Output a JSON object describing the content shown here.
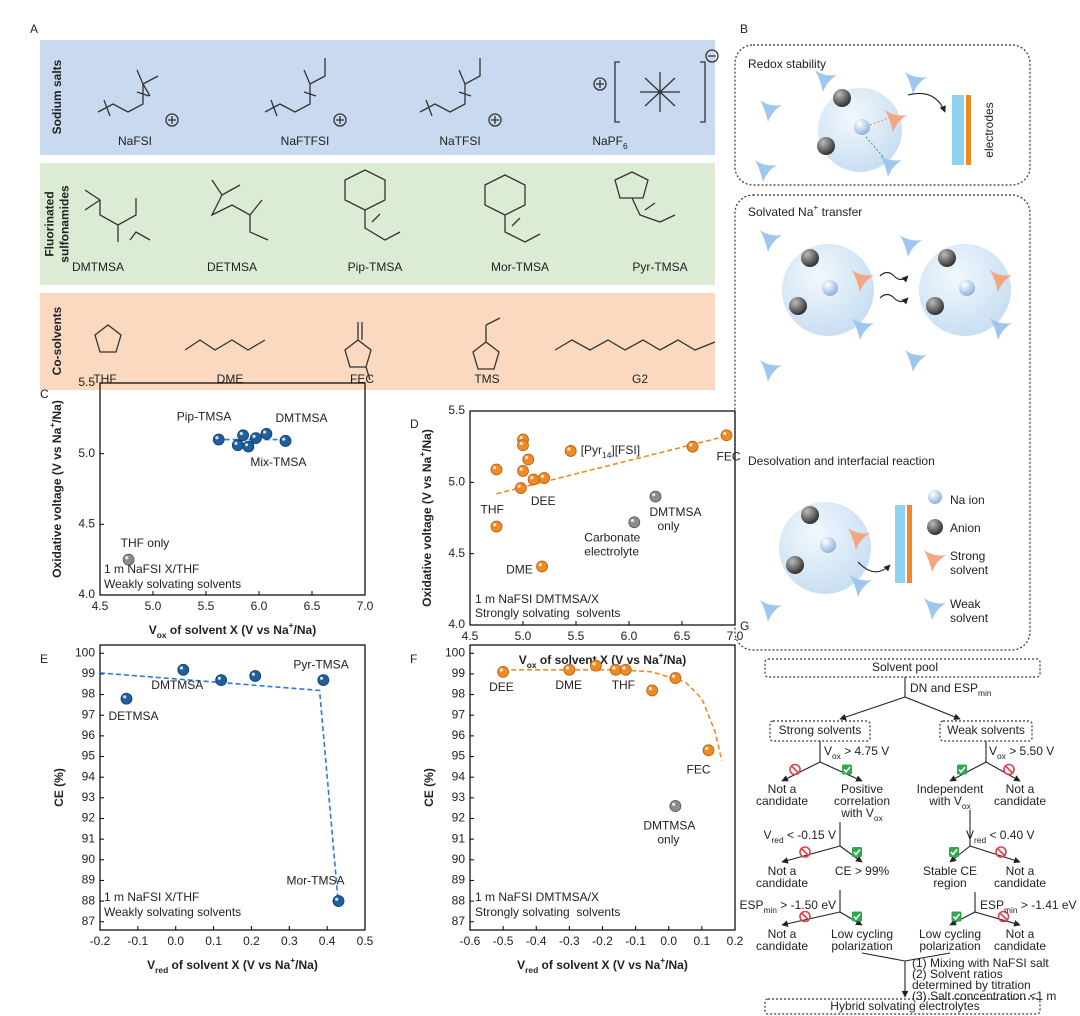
{
  "panel_a": {
    "label": "A",
    "groups": [
      {
        "title": [
          "Sodium salts"
        ],
        "items": [
          "NaFSI",
          "NaFTFSI",
          "NaTFSI",
          [
            "NaPF",
            {
              "sub": "6"
            }
          ]
        ]
      },
      {
        "title": [
          "Fluorinated",
          "sulfonamides"
        ],
        "items": [
          "DMTMSA",
          "DETMSA",
          "Pip-TMSA",
          "Mor-TMSA",
          "Pyr-TMSA"
        ]
      },
      {
        "title": [
          "Co-solvents"
        ],
        "items": [
          "THF",
          "DME",
          "FEC",
          "TMS",
          "G2"
        ]
      }
    ]
  },
  "panel_b": {
    "label": "B",
    "redox": "Redox stability",
    "electrodes": "electrodes",
    "transfer": [
      "Solvated Na",
      {
        "sup": "+"
      },
      " transfer"
    ],
    "desolvation": "Desolvation and interfacial reaction",
    "legend": [
      [
        "Na ion"
      ],
      [
        "Anion"
      ],
      [
        "Strong",
        "solvent"
      ],
      [
        "Weak",
        "solvent"
      ]
    ]
  },
  "panel_g": {
    "label": "G",
    "nodes": [
      [
        "Solvent pool"
      ],
      [
        [
          "DN and ESP",
          {
            "sub": "min"
          }
        ]
      ],
      [
        "Strong solvents"
      ],
      [
        "Weak solvents"
      ],
      [
        [
          "V",
          {
            "sub": "ox"
          },
          " > 4.75 V"
        ]
      ],
      [
        [
          "V",
          {
            "sub": "ox"
          },
          " > 5.50 V"
        ]
      ],
      [
        "Not a",
        "candidate"
      ],
      [
        "Positive",
        "correlation",
        [
          "with V",
          {
            "sub": "ox"
          }
        ]
      ],
      [
        "Independent",
        [
          "with V",
          {
            "sub": "ox"
          }
        ]
      ],
      [
        "Not a",
        "candidate"
      ],
      [
        [
          "V",
          {
            "sub": "red"
          },
          " < -0.15 V"
        ]
      ],
      [
        [
          "V",
          {
            "sub": "red"
          },
          " < 0.40 V"
        ]
      ],
      [
        "Not a",
        "candidate"
      ],
      [
        "CE > 99%"
      ],
      [
        "Stable CE",
        "region"
      ],
      [
        "Not a",
        "candidate"
      ],
      [
        [
          "ESP",
          {
            "sub": "min"
          },
          " > -1.50 eV"
        ]
      ],
      [
        [
          "ESP",
          {
            "sub": "min"
          },
          " > -1.41 eV"
        ]
      ],
      [
        "Not a",
        "candidate"
      ],
      [
        "Low cycling",
        "polarization"
      ],
      [
        "Low cycling",
        "polarization"
      ],
      [
        "Not a",
        "candidate"
      ],
      [
        "(1) Mixing with NaFSI salt",
        "(2) Solvent ratios",
        "determined by titration",
        "(3) Salt concentration <1 m"
      ],
      [
        "Hybrid solvating electrolytes"
      ]
    ]
  },
  "chart_data": [
    {
      "type": "scatter",
      "label": "C",
      "x_label": [
        "V",
        {
          "sub": "ox"
        },
        " of solvent X (V vs Na",
        {
          "sup": "+"
        },
        "/Na)"
      ],
      "y_label": [
        "Oxidative voltage (V vs Na",
        {
          "sup": "+"
        },
        "/Na)"
      ],
      "xlim": [
        4.5,
        7.0
      ],
      "xticks": [
        4.5,
        {
          "value": 5,
          "label": "5.0"
        },
        5.5,
        {
          "value": 6,
          "label": "6.0"
        },
        6.5,
        {
          "value": 7,
          "label": "7.0"
        }
      ],
      "ylim": [
        4.0,
        5.5
      ],
      "yticks": [
        {
          "value": 4,
          "label": "4.0"
        },
        4.5,
        {
          "value": 5,
          "label": "5.0"
        },
        5.5
      ],
      "series": [
        {
          "mode": "dashed-line",
          "color": "#2e7bd6",
          "x": [
            5.6,
            6.3
          ],
          "values": [
            5.1,
            5.1
          ]
        },
        {
          "mode": "markers",
          "color": "#1f5f9e",
          "x": [
            5.62,
            5.8,
            5.85,
            5.9,
            5.97,
            6.07,
            6.25
          ],
          "values": [
            5.1,
            5.06,
            5.13,
            5.05,
            5.11,
            5.14,
            5.09
          ]
        },
        {
          "mode": "markers",
          "color": "#8c8c8c",
          "x": [
            4.77
          ],
          "values": [
            4.25
          ]
        }
      ],
      "annotations": [
        {
          "text": "Pip-TMSA"
        },
        {
          "text": "DMTMSA"
        },
        {
          "text": "Mix-TMSA"
        },
        {
          "text": "THF only"
        },
        {
          "text": "1 m NaFSI X/THF",
          "color": "#2e7bd6"
        },
        {
          "text": "Weakly solvating solvents",
          "color": "#2e7bd6"
        }
      ]
    },
    {
      "type": "scatter",
      "label": "D",
      "x_label": [
        "V",
        {
          "sub": "ox"
        },
        " of solvent X (V vs Na",
        {
          "sup": "+"
        },
        "/Na)"
      ],
      "y_label": [
        "Oxidative voltage (V vs Na",
        {
          "sup": "+"
        },
        "/Na)"
      ],
      "xlim": [
        4.5,
        7.0
      ],
      "xticks": [
        4.5,
        {
          "value": 5,
          "label": "5.0"
        },
        5.5,
        {
          "value": 6,
          "label": "6.0"
        },
        6.5,
        {
          "value": 7,
          "label": "7.0"
        }
      ],
      "ylim": [
        4.0,
        5.5
      ],
      "yticks": [
        {
          "value": 4,
          "label": "4.0"
        },
        4.5,
        {
          "value": 5,
          "label": "5.0"
        },
        5.5
      ],
      "series": [
        {
          "mode": "dashed-line",
          "color": "#f08a24",
          "x": [
            4.75,
            6.95
          ],
          "values": [
            4.92,
            5.33
          ]
        },
        {
          "mode": "markers",
          "color": "#f08a24",
          "x": [
            4.75,
            5.0,
            5.0,
            5.05,
            5.0,
            5.1,
            5.2,
            4.98,
            5.45,
            6.6,
            6.92,
            4.75,
            5.18
          ],
          "values": [
            5.09,
            5.3,
            5.26,
            5.16,
            5.08,
            5.02,
            5.03,
            4.96,
            5.22,
            5.25,
            5.33,
            4.69,
            4.41
          ]
        },
        {
          "mode": "markers",
          "color": "#8c8c8c",
          "x": [
            6.05,
            6.25
          ],
          "values": [
            4.72,
            4.9
          ]
        }
      ],
      "annotations": [
        {
          "text": [
            "[Pyr",
            {
              "sub": "14"
            },
            "][FSI]"
          ]
        },
        {
          "text": "FEC"
        },
        {
          "text": "THF"
        },
        {
          "text": "DEE"
        },
        {
          "text": "DME"
        },
        {
          "text": "Carbonate"
        },
        {
          "text": "electrolyte"
        },
        {
          "text": "DMTMSA"
        },
        {
          "text": "only"
        },
        {
          "text": "1 m NaFSI DMTMSA/X",
          "color": "#f08a24"
        },
        {
          "text": "Strongly solvating  solvents",
          "color": "#f08a24"
        }
      ]
    },
    {
      "type": "scatter",
      "label": "E",
      "x_label": [
        "V",
        {
          "sub": "red"
        },
        " of solvent X (V vs Na",
        {
          "sup": "+"
        },
        "/Na)"
      ],
      "y_label": "CE (%)",
      "xlim": [
        -0.2,
        0.5
      ],
      "xticks": [
        -0.2,
        -0.1,
        {
          "value": 0,
          "label": "0.0"
        },
        0.1,
        0.2,
        0.3,
        0.4,
        0.5
      ],
      "ylim": [
        86.6,
        100.4
      ],
      "yticks": [
        87,
        88,
        89,
        90,
        91,
        92,
        93,
        94,
        95,
        96,
        97,
        98,
        99,
        100
      ],
      "series": [
        {
          "mode": "dashed-line",
          "color": "#2e7bd6",
          "x": [
            -0.2,
            0.38,
            0.43
          ],
          "values": [
            99.05,
            98.2,
            87.8
          ]
        },
        {
          "mode": "markers",
          "color": "#1f5f9e",
          "x": [
            -0.13,
            0.02,
            0.12,
            0.21,
            0.39,
            0.43
          ],
          "values": [
            97.8,
            99.2,
            98.7,
            98.9,
            98.7,
            88.0
          ]
        }
      ],
      "annotations": [
        {
          "text": "DETMSA"
        },
        {
          "text": "DMTMSA"
        },
        {
          "text": "Pyr-TMSA"
        },
        {
          "text": "Mor-TMSA"
        },
        {
          "text": "1 m NaFSI X/THF",
          "color": "#2e7bd6"
        },
        {
          "text": "Weakly solvating solvents",
          "color": "#2e7bd6"
        }
      ]
    },
    {
      "type": "scatter",
      "label": "F",
      "x_label": [
        "V",
        {
          "sub": "red"
        },
        " of solvent X (V vs Na",
        {
          "sup": "+"
        },
        "/Na)"
      ],
      "y_label": "CE (%)",
      "xlim": [
        -0.6,
        0.2
      ],
      "xticks": [
        -0.6,
        -0.5,
        -0.4,
        -0.3,
        -0.2,
        -0.1,
        {
          "value": 0,
          "label": "0.0"
        },
        0.1,
        0.2
      ],
      "ylim": [
        86.6,
        100.4
      ],
      "yticks": [
        87,
        88,
        89,
        90,
        91,
        92,
        93,
        94,
        95,
        96,
        97,
        98,
        99,
        100
      ],
      "series": [
        {
          "mode": "dashed-line",
          "color": "#f08a24",
          "x": [
            -0.5,
            -0.3,
            -0.15,
            -0.05,
            0.05,
            0.1,
            0.14,
            0.16
          ],
          "values": [
            99.2,
            99.2,
            99.2,
            99.1,
            98.6,
            97.8,
            96.2,
            94.8
          ]
        },
        {
          "mode": "markers",
          "color": "#f08a24",
          "x": [
            -0.5,
            -0.3,
            -0.22,
            -0.16,
            -0.13,
            -0.05,
            0.02,
            0.12
          ],
          "values": [
            99.1,
            99.2,
            99.4,
            99.2,
            99.2,
            98.2,
            98.8,
            95.3
          ]
        },
        {
          "mode": "markers",
          "color": "#8c8c8c",
          "x": [
            0.02
          ],
          "values": [
            92.6
          ]
        }
      ],
      "annotations": [
        {
          "text": "DEE"
        },
        {
          "text": "DME"
        },
        {
          "text": "THF"
        },
        {
          "text": "FEC"
        },
        {
          "text": "DMTMSA"
        },
        {
          "text": "only"
        },
        {
          "text": "1 m NaFSI DMTMSA/X",
          "color": "#f08a24"
        },
        {
          "text": "Strongly solvating  solvents",
          "color": "#f08a24"
        }
      ]
    }
  ]
}
